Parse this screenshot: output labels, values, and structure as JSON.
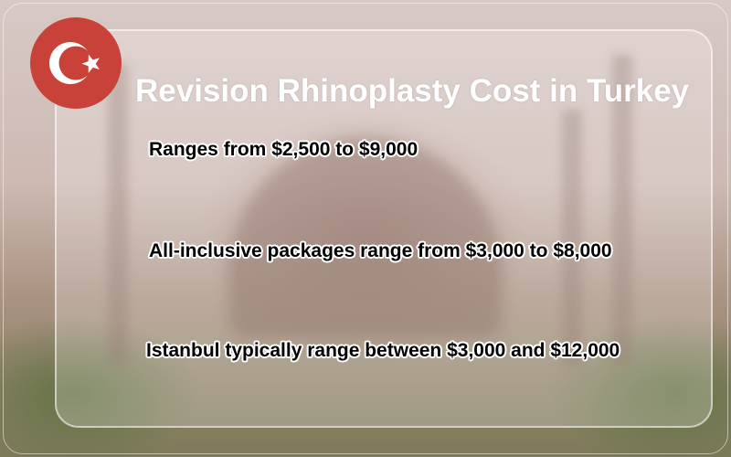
{
  "title": "Revision Rhinoplasty Cost in Turkey",
  "flag_icon": "turkey-flag-icon",
  "colors": {
    "flag_red": "#c9423a",
    "title": "#ffffff",
    "text": "#000000"
  },
  "points": [
    "Ranges from $2,500 to $9,000",
    "All-inclusive packages  range from $3,000 to $8,000",
    "Istanbul typically range between $3,000 and $12,000"
  ]
}
